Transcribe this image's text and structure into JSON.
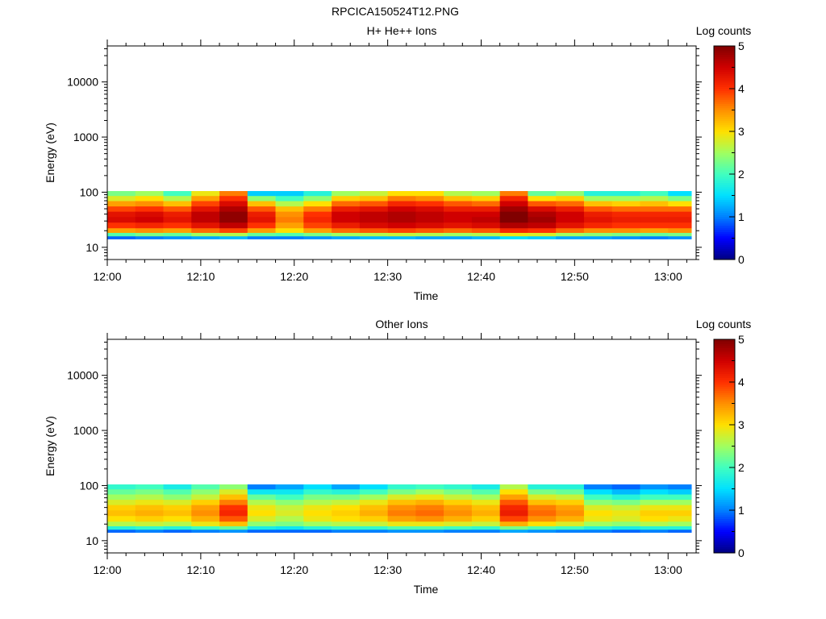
{
  "figure_title": "RPCICA150524T12.PNG",
  "colormap": [
    "#00007f",
    "#0000ff",
    "#0080ff",
    "#00e0ff",
    "#40ffc0",
    "#a0ff60",
    "#ffe000",
    "#ff9000",
    "#ff3000",
    "#d00000",
    "#800000"
  ],
  "chart_data": [
    {
      "type": "heatmap",
      "title": "H+ He++ Ions",
      "xlabel": "Time",
      "ylabel": "Energy (eV)",
      "colorbar_label": "Log counts",
      "x_range": [
        "12:00",
        "13:03"
      ],
      "x_ticks": [
        "12:00",
        "12:10",
        "12:20",
        "12:30",
        "12:40",
        "12:50",
        "13:00"
      ],
      "y_scale": "log",
      "y_range": [
        6,
        45000
      ],
      "y_ticks": [
        "10",
        "100",
        "1000",
        "10000"
      ],
      "color_range": [
        0,
        5
      ],
      "color_ticks": [
        "0",
        "1",
        "2",
        "3",
        "4",
        "5"
      ],
      "time_bins": [
        "12:00",
        "12:03",
        "12:06",
        "12:09",
        "12:12",
        "12:15",
        "12:18",
        "12:21",
        "12:24",
        "12:27",
        "12:30",
        "12:33",
        "12:36",
        "12:39",
        "12:42",
        "12:45",
        "12:48",
        "12:51",
        "12:54",
        "12:57",
        "13:00"
      ],
      "energy_bins": [
        15,
        17,
        20,
        25,
        32,
        40,
        50,
        62,
        78,
        95
      ],
      "log_counts": [
        [
          0.9,
          2.1,
          3.4,
          4.0,
          4.4,
          4.3,
          3.9,
          3.4,
          2.8,
          2.3
        ],
        [
          1.0,
          2.3,
          3.5,
          4.1,
          4.5,
          4.4,
          4.0,
          3.5,
          3.0,
          2.5
        ],
        [
          1.1,
          2.2,
          3.4,
          4.0,
          4.3,
          4.2,
          3.8,
          3.2,
          2.6,
          2.0
        ],
        [
          1.2,
          2.5,
          3.7,
          4.3,
          4.6,
          4.6,
          4.3,
          3.9,
          3.4,
          2.9
        ],
        [
          1.3,
          2.6,
          3.9,
          4.6,
          4.9,
          4.9,
          4.7,
          4.4,
          4.0,
          3.6
        ],
        [
          1.0,
          2.2,
          3.4,
          4.0,
          4.3,
          4.2,
          3.8,
          3.2,
          2.4,
          1.4
        ],
        [
          1.0,
          2.1,
          3.0,
          3.4,
          3.6,
          3.5,
          3.2,
          2.6,
          2.0,
          1.4
        ],
        [
          1.1,
          2.3,
          3.4,
          3.9,
          4.1,
          4.0,
          3.6,
          3.0,
          2.4,
          1.8
        ],
        [
          1.2,
          2.5,
          3.7,
          4.2,
          4.5,
          4.5,
          4.2,
          3.7,
          3.1,
          2.5
        ],
        [
          1.3,
          2.6,
          3.8,
          4.4,
          4.6,
          4.6,
          4.3,
          3.8,
          3.2,
          2.7
        ],
        [
          1.3,
          2.7,
          3.9,
          4.5,
          4.7,
          4.7,
          4.5,
          4.1,
          3.6,
          3.0
        ],
        [
          1.2,
          2.6,
          3.8,
          4.4,
          4.6,
          4.6,
          4.4,
          4.0,
          3.5,
          3.0
        ],
        [
          1.2,
          2.5,
          3.7,
          4.3,
          4.5,
          4.5,
          4.2,
          3.8,
          3.2,
          2.6
        ],
        [
          1.3,
          2.6,
          3.8,
          4.4,
          4.6,
          4.5,
          4.2,
          3.7,
          3.1,
          2.5
        ],
        [
          1.5,
          2.9,
          4.1,
          4.7,
          5.0,
          5.0,
          4.8,
          4.5,
          4.1,
          3.6
        ],
        [
          1.4,
          2.8,
          4.0,
          4.6,
          4.8,
          4.7,
          4.4,
          3.8,
          3.0,
          2.2
        ],
        [
          1.2,
          2.5,
          3.7,
          4.3,
          4.5,
          4.5,
          4.2,
          3.7,
          3.1,
          2.4
        ],
        [
          1.2,
          2.4,
          3.5,
          4.1,
          4.3,
          4.2,
          3.8,
          3.2,
          2.5,
          1.8
        ],
        [
          1.1,
          2.3,
          3.5,
          4.0,
          4.2,
          4.1,
          3.7,
          3.1,
          2.5,
          1.8
        ],
        [
          1.0,
          2.2,
          3.4,
          4.0,
          4.2,
          4.1,
          3.7,
          3.2,
          2.6,
          2.0
        ],
        [
          1.1,
          2.3,
          3.5,
          4.0,
          4.2,
          4.1,
          3.7,
          3.0,
          2.3,
          1.5
        ]
      ]
    },
    {
      "type": "heatmap",
      "title": "Other Ions",
      "xlabel": "Time",
      "ylabel": "Energy (eV)",
      "colorbar_label": "Log counts",
      "x_range": [
        "12:00",
        "13:03"
      ],
      "x_ticks": [
        "12:00",
        "12:10",
        "12:20",
        "12:30",
        "12:40",
        "12:50",
        "13:00"
      ],
      "y_scale": "log",
      "y_range": [
        6,
        45000
      ],
      "y_ticks": [
        "10",
        "100",
        "1000",
        "10000"
      ],
      "color_range": [
        0,
        5
      ],
      "color_ticks": [
        "0",
        "1",
        "2",
        "3",
        "4",
        "5"
      ],
      "time_bins": [
        "12:00",
        "12:03",
        "12:06",
        "12:09",
        "12:12",
        "12:15",
        "12:18",
        "12:21",
        "12:24",
        "12:27",
        "12:30",
        "12:33",
        "12:36",
        "12:39",
        "12:42",
        "12:45",
        "12:48",
        "12:51",
        "12:54",
        "12:57",
        "13:00"
      ],
      "energy_bins": [
        15,
        17,
        20,
        25,
        32,
        40,
        50,
        62,
        78,
        95
      ],
      "log_counts": [
        [
          0.9,
          1.8,
          2.6,
          3.0,
          3.2,
          3.1,
          2.8,
          2.5,
          2.2,
          1.9
        ],
        [
          1.0,
          1.9,
          2.7,
          3.1,
          3.3,
          3.2,
          2.9,
          2.6,
          2.3,
          2.0
        ],
        [
          0.9,
          1.8,
          2.6,
          3.0,
          3.2,
          3.1,
          2.8,
          2.4,
          2.1,
          1.7
        ],
        [
          1.0,
          2.0,
          2.9,
          3.3,
          3.5,
          3.4,
          3.1,
          2.7,
          2.4,
          2.1
        ],
        [
          1.1,
          2.2,
          3.2,
          3.8,
          4.1,
          4.0,
          3.6,
          3.2,
          2.8,
          2.4
        ],
        [
          0.9,
          1.7,
          2.4,
          2.8,
          3.0,
          2.9,
          2.6,
          2.2,
          1.6,
          1.0
        ],
        [
          0.9,
          1.6,
          2.3,
          2.6,
          2.8,
          2.7,
          2.4,
          2.0,
          1.6,
          1.2
        ],
        [
          0.9,
          1.8,
          2.5,
          2.9,
          3.0,
          2.9,
          2.6,
          2.3,
          1.9,
          1.5
        ],
        [
          1.0,
          1.9,
          2.6,
          3.0,
          3.1,
          3.0,
          2.7,
          2.3,
          1.8,
          1.2
        ],
        [
          1.0,
          1.9,
          2.7,
          3.1,
          3.3,
          3.2,
          2.9,
          2.5,
          2.0,
          1.5
        ],
        [
          1.1,
          2.1,
          2.9,
          3.4,
          3.6,
          3.5,
          3.2,
          2.8,
          2.3,
          1.9
        ],
        [
          1.1,
          2.1,
          2.9,
          3.5,
          3.7,
          3.6,
          3.3,
          2.9,
          2.5,
          2.0
        ],
        [
          1.0,
          2.0,
          2.8,
          3.3,
          3.5,
          3.4,
          3.1,
          2.7,
          2.3,
          1.9
        ],
        [
          1.0,
          1.9,
          2.7,
          3.1,
          3.3,
          3.2,
          2.9,
          2.5,
          2.1,
          1.7
        ],
        [
          1.2,
          2.3,
          3.3,
          3.9,
          4.2,
          4.1,
          3.8,
          3.4,
          3.0,
          2.6
        ],
        [
          1.1,
          2.1,
          3.0,
          3.5,
          3.7,
          3.6,
          3.2,
          2.8,
          2.3,
          1.8
        ],
        [
          1.0,
          2.0,
          2.8,
          3.3,
          3.5,
          3.4,
          3.1,
          2.7,
          2.2,
          1.8
        ],
        [
          1.0,
          1.8,
          2.5,
          2.9,
          3.0,
          2.8,
          2.4,
          2.0,
          1.5,
          1.0
        ],
        [
          0.9,
          1.7,
          2.4,
          2.8,
          2.9,
          2.7,
          2.3,
          1.8,
          1.3,
          0.9
        ],
        [
          1.0,
          1.8,
          2.6,
          3.0,
          3.1,
          2.9,
          2.5,
          2.0,
          1.5,
          1.1
        ],
        [
          0.9,
          1.8,
          2.5,
          2.9,
          3.1,
          2.9,
          2.5,
          2.0,
          1.4,
          1.0
        ]
      ]
    }
  ]
}
